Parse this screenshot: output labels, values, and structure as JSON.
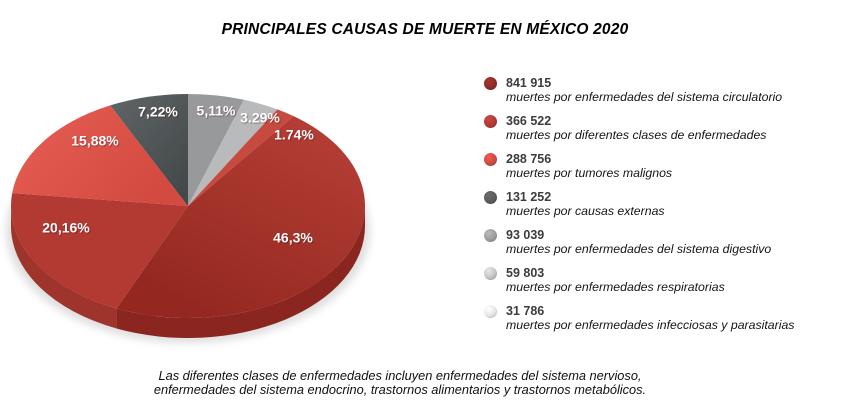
{
  "title": "PRINCIPALES CAUSAS DE MUERTE EN MÉXICO 2020",
  "footnote": {
    "line1": "Las diferentes clases de enfermedades incluyen enfermedades del sistema nervioso,",
    "line2": "enfermedades del sistema endocrino, trastornos alimentarios y trastornos metabólicos."
  },
  "chart_data": {
    "type": "pie",
    "style": "3d-pie",
    "title": "PRINCIPALES CAUSAS DE MUERTE EN MÉXICO 2020",
    "legend_position": "right",
    "start_angle_deg": 0,
    "clockwise": true,
    "slices": [
      {
        "value": 841915,
        "value_label": "841 915",
        "pct": 46.3,
        "pct_label": "46,3%",
        "desc": "muertes por enfermedades del sistema circulatorio",
        "color": "#9c2d26",
        "side_color": "#8a2520",
        "bullet_color": "#8e2b27",
        "grad": {
          "from": "#b43e35",
          "to": "#942820",
          "x1": 0.85,
          "y1": 0.05,
          "x2": 0.3,
          "y2": 0.95
        },
        "label_xy": [
          293,
          179
        ]
      },
      {
        "value": 366522,
        "value_label": "366 522",
        "pct": 20.16,
        "pct_label": "20,16%",
        "desc": "muertes por diferentes clases de enfermedades",
        "color": "#b23a33",
        "side_color": "#9e342c",
        "bullet_color": "#ae3b35",
        "label_xy": [
          66,
          169
        ]
      },
      {
        "value": 288756,
        "value_label": "288 756",
        "pct": 15.88,
        "pct_label": "15,88%",
        "desc": "muertes por tumores malignos",
        "color": "#dc5348",
        "side_color": "#c4453c",
        "bullet_color": "#cd4b43",
        "grad": {
          "from": "#e25a50",
          "to": "#d34a41",
          "x1": 0.1,
          "y1": 0.3,
          "x2": 0.9,
          "y2": 0.7
        },
        "label_xy": [
          95,
          82
        ]
      },
      {
        "value": 131252,
        "value_label": "131 252",
        "pct": 7.22,
        "pct_label": "7,22%",
        "desc": "muertes por causas externas",
        "color": "#4e5456",
        "side_color": "#3f4446",
        "bullet_color": "#5b5b5b",
        "grad": {
          "from": "#5c6264",
          "to": "#434849",
          "x1": 0.15,
          "y1": 0.1,
          "x2": 0.85,
          "y2": 0.95
        },
        "label_xy": [
          158,
          53
        ]
      },
      {
        "value": 93039,
        "value_label": "93 039",
        "pct": 5.11,
        "pct_label": "5,11%",
        "desc": "muertes por enfermedades del sistema digestivo",
        "color": "#98999b",
        "side_color": "#85868a",
        "bullet_color": "#9e9e9e",
        "label_xy": [
          216,
          52
        ]
      },
      {
        "value": 59803,
        "value_label": "59 803",
        "pct": 3.29,
        "pct_label": "3.29%",
        "desc": "muertes por enfermedades respiratorias",
        "color": "#b8babc",
        "side_color": "#a4a6a8",
        "bullet_color": "#c4c4c4",
        "label_xy": [
          260,
          59
        ]
      },
      {
        "value": 31786,
        "value_label": "31 786",
        "pct": 1.74,
        "pct_label": "1.74%",
        "desc": "muertes por enfermedades infecciosas y parasitarias",
        "color": "#c74a41",
        "side_color": "#b03c34",
        "bullet_color": "#e6e6e6",
        "label_xy": [
          294,
          76
        ]
      }
    ],
    "pie_draw_order": [
      4,
      5,
      6,
      0,
      1,
      2,
      3
    ]
  }
}
